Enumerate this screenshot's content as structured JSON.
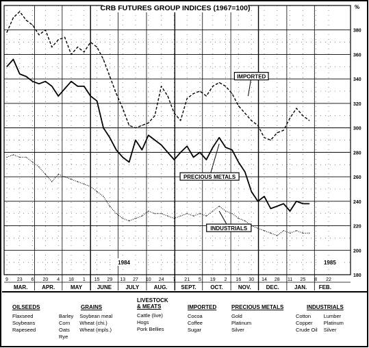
{
  "chart_data": {
    "type": "line",
    "title": "CRB FUTURES GROUP INDICES (1967=100)",
    "ylabel": "%",
    "ylim": [
      180,
      400
    ],
    "yticks": [
      180,
      200,
      220,
      240,
      260,
      280,
      300,
      320,
      340,
      360,
      380
    ],
    "grid": true,
    "year_labels": [
      "1984",
      "1985"
    ],
    "day_ticks": [
      "9",
      "23",
      "6",
      "20",
      "4",
      "18",
      "1",
      "15",
      "29",
      "13",
      "27",
      "10",
      "24",
      "7",
      "21",
      "5",
      "19",
      "2",
      "16",
      "30",
      "14",
      "28",
      "11",
      "25",
      "8",
      "22"
    ],
    "months": [
      "MAR.",
      "APR.",
      "MAY",
      "JUNE",
      "JULY",
      "AUG.",
      "SEPT.",
      "OCT.",
      "NOV.",
      "DEC.",
      "JAN.",
      "FEB."
    ],
    "x_unit": "weeks from start of March 1984",
    "series": [
      {
        "name": "IMPORTED",
        "style": "dashed",
        "x": [
          0,
          1,
          2,
          3,
          4,
          5,
          6,
          7,
          8,
          9,
          10,
          11,
          12,
          13,
          14,
          15,
          16,
          17,
          18,
          19,
          20,
          21,
          22,
          23,
          24,
          25,
          26,
          27,
          28,
          29,
          30,
          31,
          32,
          33,
          34,
          35,
          36,
          37,
          38,
          39,
          40,
          41,
          42,
          43,
          44,
          45,
          46,
          47
        ],
        "values": [
          378,
          390,
          395,
          388,
          384,
          376,
          380,
          366,
          372,
          374,
          360,
          366,
          362,
          370,
          366,
          356,
          342,
          328,
          316,
          302,
          300,
          302,
          304,
          310,
          334,
          326,
          312,
          306,
          324,
          328,
          330,
          326,
          334,
          337,
          334,
          328,
          318,
          312,
          306,
          302,
          292,
          290,
          296,
          298,
          308,
          316,
          310,
          306
        ]
      },
      {
        "name": "PRECIOUS METALS",
        "style": "solid",
        "x": [
          0,
          1,
          2,
          3,
          4,
          5,
          6,
          7,
          8,
          9,
          10,
          11,
          12,
          13,
          14,
          15,
          16,
          17,
          18,
          19,
          20,
          21,
          22,
          23,
          24,
          25,
          26,
          27,
          28,
          29,
          30,
          31,
          32,
          33,
          34,
          35,
          36,
          37,
          38,
          39,
          40,
          41,
          42,
          43,
          44,
          45,
          46,
          47
        ],
        "values": [
          350,
          356,
          344,
          342,
          338,
          336,
          338,
          334,
          326,
          332,
          338,
          334,
          334,
          326,
          322,
          300,
          292,
          282,
          276,
          272,
          290,
          282,
          294,
          290,
          286,
          280,
          274,
          280,
          285,
          276,
          280,
          274,
          284,
          292,
          284,
          282,
          272,
          264,
          248,
          240,
          244,
          234,
          236,
          238,
          232,
          240,
          238,
          238
        ]
      },
      {
        "name": "INDUSTRIALS",
        "style": "dotted",
        "x": [
          0,
          1,
          2,
          3,
          4,
          5,
          6,
          7,
          8,
          9,
          10,
          11,
          12,
          13,
          14,
          15,
          16,
          17,
          18,
          19,
          20,
          21,
          22,
          23,
          24,
          25,
          26,
          27,
          28,
          29,
          30,
          31,
          32,
          33,
          34,
          35,
          36,
          37,
          38,
          39,
          40,
          41,
          42,
          43,
          44,
          45,
          46,
          47
        ],
        "values": [
          276,
          278,
          276,
          276,
          272,
          268,
          262,
          256,
          262,
          260,
          258,
          256,
          254,
          252,
          248,
          244,
          236,
          230,
          226,
          224,
          226,
          228,
          232,
          230,
          230,
          228,
          226,
          228,
          230,
          228,
          230,
          228,
          232,
          236,
          232,
          230,
          226,
          224,
          220,
          218,
          216,
          214,
          212,
          216,
          214,
          216,
          214,
          214
        ]
      }
    ]
  },
  "legend": {
    "oilseeds": {
      "heading": "OILSEEDS",
      "items": [
        "Flaxseed",
        "Soybeans",
        "Rapeseed"
      ]
    },
    "grains": {
      "heading": "GRAINS",
      "col1": [
        "Barley",
        "Corn",
        "Oats",
        "Rye"
      ],
      "col2": [
        "Soybean meal",
        "Wheat (chi.)",
        "Wheat (mpls.)"
      ]
    },
    "livestock": {
      "heading1": "LIVESTOCK",
      "heading2": "& MEATS",
      "items": [
        "Cattle (live)",
        "Hogs",
        "Pork Bellies"
      ]
    },
    "imported": {
      "heading": "IMPORTED",
      "items": [
        "Cocoa",
        "Coffee",
        "Sugar"
      ]
    },
    "precious": {
      "heading": "PRECIOUS METALS",
      "items": [
        "Gold",
        "Platinum",
        "Silver"
      ]
    },
    "industrials": {
      "heading": "INDUSTRIALS",
      "col1": [
        "Cotton",
        "Copper",
        "Crude Oil"
      ],
      "col2": [
        "Lumber",
        "Platinum",
        "Silver"
      ]
    }
  }
}
